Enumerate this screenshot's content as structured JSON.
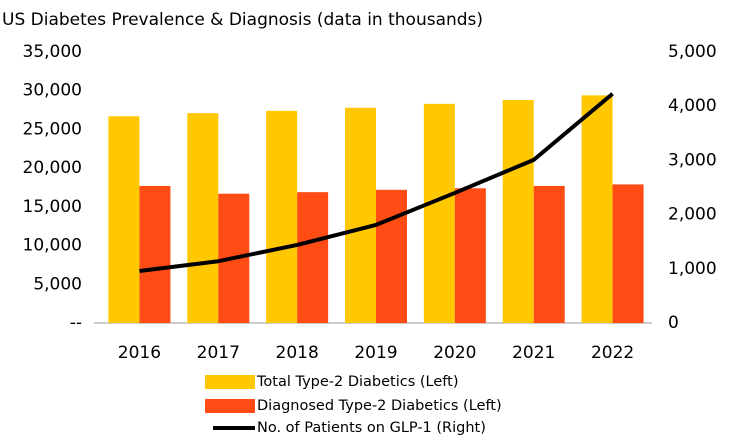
{
  "chart_data": {
    "type": "bar-line",
    "title": "US Diabetes Prevalence & Diagnosis (data in thousands)",
    "categories": [
      "2016",
      "2017",
      "2018",
      "2019",
      "2020",
      "2021",
      "2022"
    ],
    "series": [
      {
        "name": "Total Type-2 Diabetics (Left)",
        "type": "bar",
        "color": "#ffc800",
        "values": [
          26700,
          27100,
          27400,
          27800,
          28300,
          28800,
          29400
        ]
      },
      {
        "name": "Diagnosed Type-2 Diabetics (Left)",
        "type": "bar",
        "color": "#ff4b14",
        "values": [
          17700,
          16700,
          16900,
          17200,
          17400,
          17700,
          17900
        ]
      },
      {
        "name": "No. of Patients on GLP-1 (Right)",
        "type": "line",
        "axis": "y2",
        "color": "#000000",
        "values": [
          960,
          1140,
          1440,
          1810,
          2400,
          3010,
          4230
        ]
      }
    ],
    "ylim": [
      0,
      35000
    ],
    "yticks": [
      {
        "value": 0,
        "label": "--"
      },
      {
        "value": 5000,
        "label": "5,000"
      },
      {
        "value": 10000,
        "label": "10,000"
      },
      {
        "value": 15000,
        "label": "15,000"
      },
      {
        "value": 20000,
        "label": "20,000"
      },
      {
        "value": 25000,
        "label": "25,000"
      },
      {
        "value": 30000,
        "label": "30,000"
      },
      {
        "value": 35000,
        "label": "35,000"
      }
    ],
    "y2lim": [
      0,
      5000
    ],
    "y2ticks": [
      0,
      {
        "value": 1000,
        "label": "1,000"
      },
      {
        "value": 2000,
        "label": "2,000"
      },
      {
        "value": 3000,
        "label": "3,000"
      },
      {
        "value": 4000,
        "label": "4,000"
      },
      {
        "value": 5000,
        "label": "5,000"
      }
    ],
    "legend": "bottom"
  }
}
